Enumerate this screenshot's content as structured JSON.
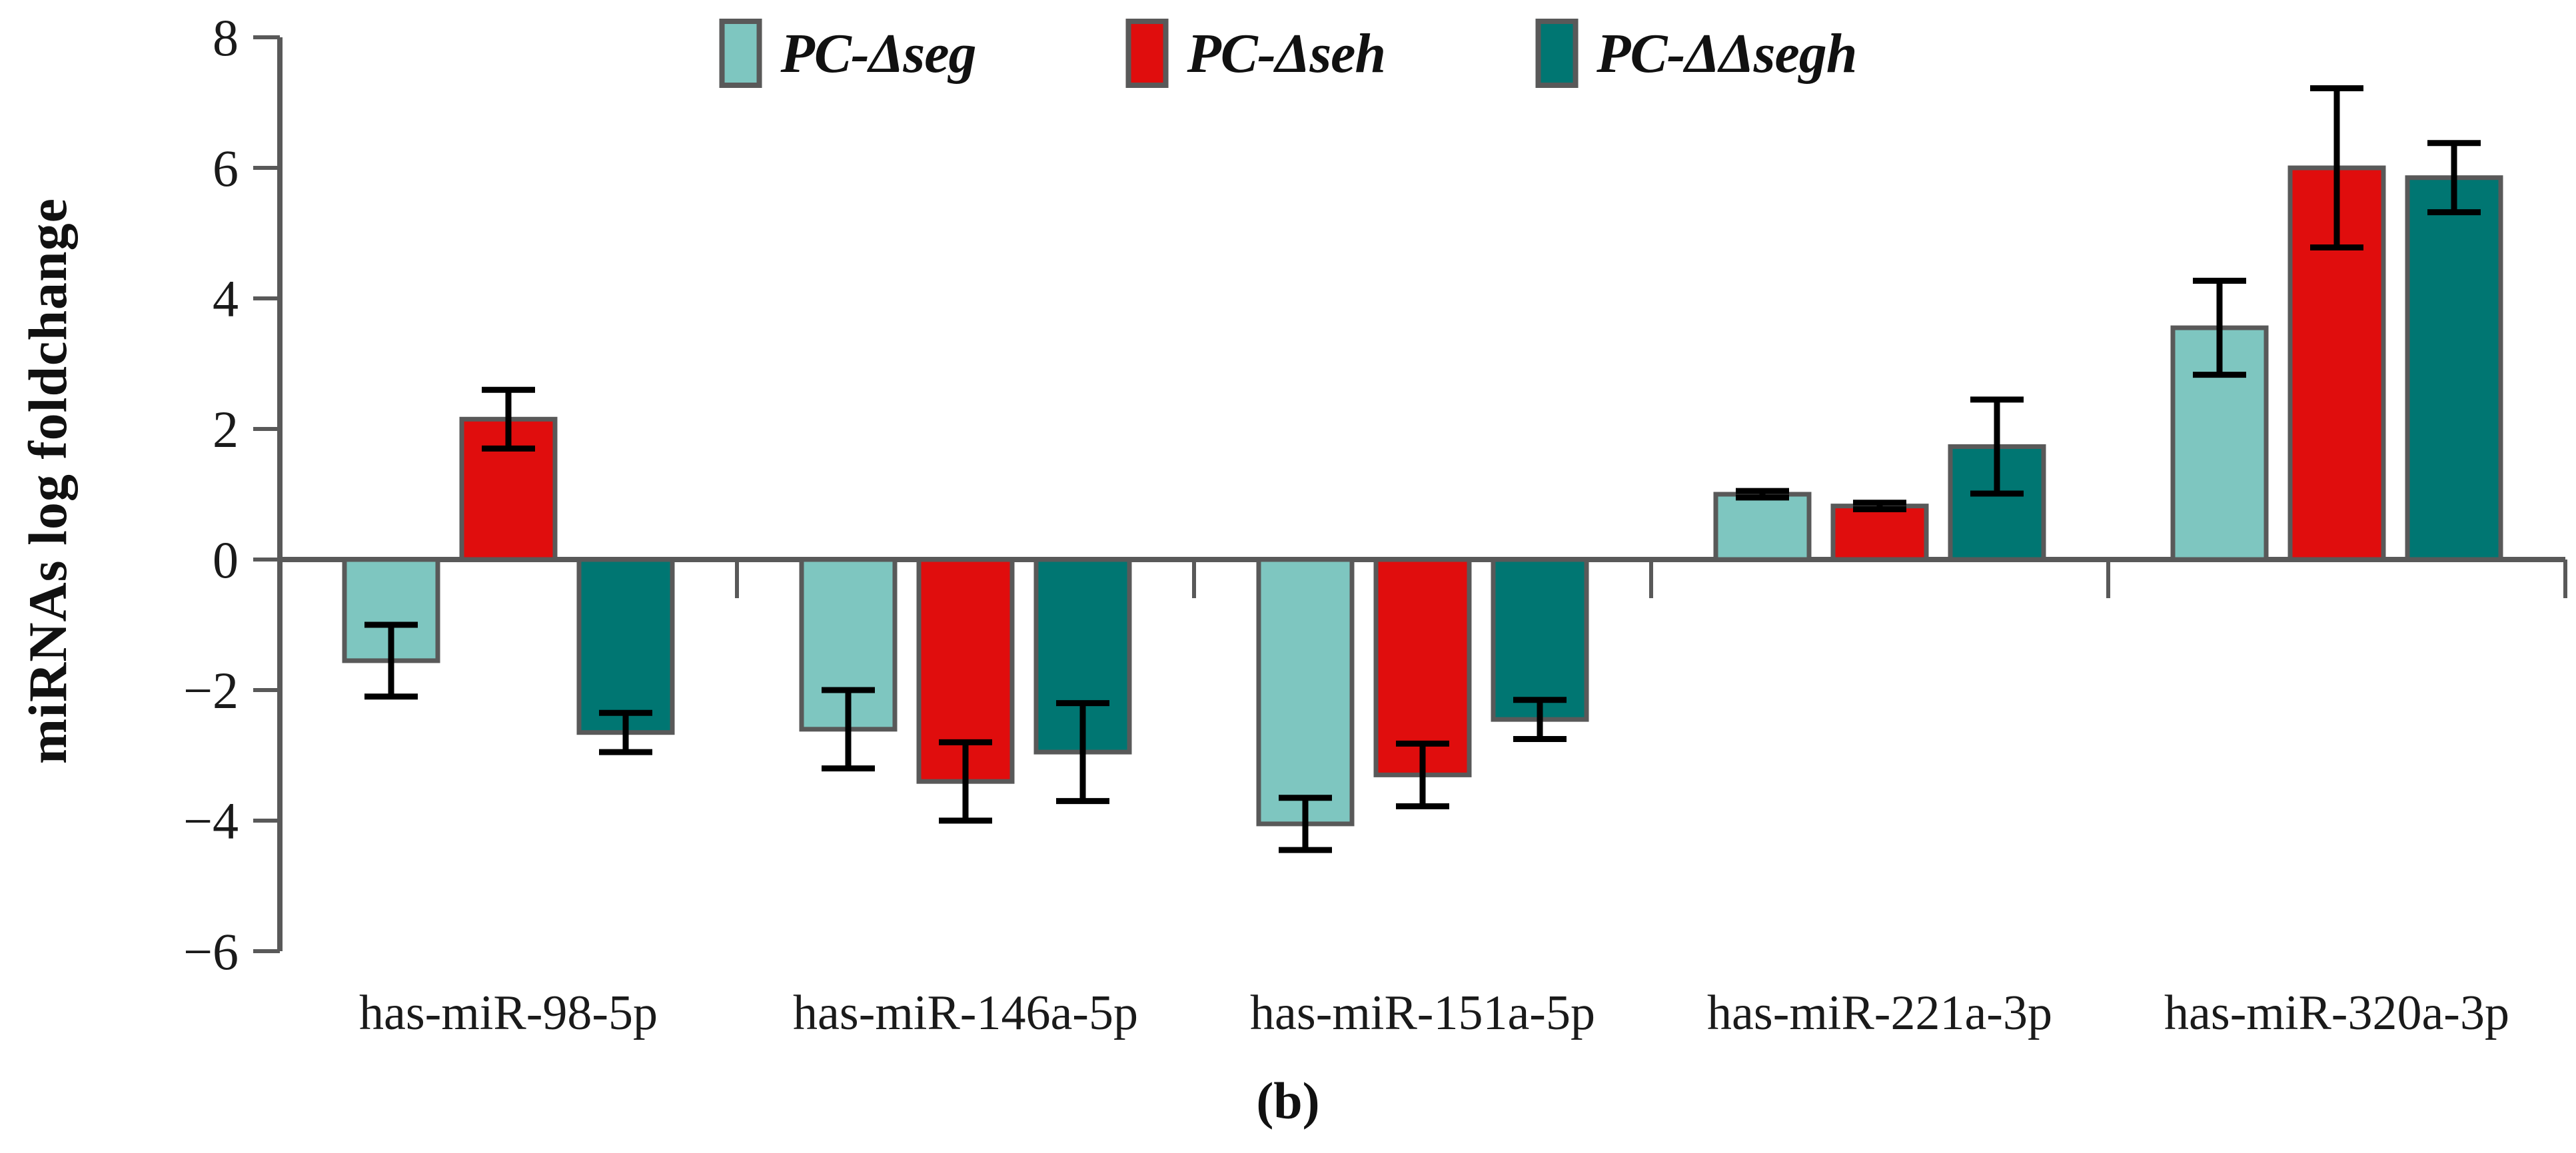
{
  "caption": "(b)",
  "legend": {
    "position": "top",
    "items": [
      {
        "label": "PC-Δseg",
        "color": "#7EC6C0"
      },
      {
        "label": "PC-Δseh",
        "color": "#E00D0D"
      },
      {
        "label": "PC-ΔΔsegh",
        "color": "#007672"
      }
    ]
  },
  "chart_data": {
    "type": "bar",
    "title": "",
    "xlabel": "",
    "ylabel": "miRNAs log foldchange",
    "ylim": [
      -6,
      8
    ],
    "yticks": [
      8,
      6,
      4,
      2,
      0,
      -2,
      -4,
      -6
    ],
    "grid": false,
    "legend_position": "top",
    "categories": [
      "has-miR-98-5p",
      "has-miR-146a-5p",
      "has-miR-151a-5p",
      "has-miR-221a-3p",
      "has-miR-320a-3p"
    ],
    "series": [
      {
        "name": "PC-Δseg",
        "color": "#7EC6C0",
        "values": [
          -1.55,
          -2.6,
          -4.05,
          1.0,
          3.55
        ],
        "errors": [
          0.55,
          0.6,
          0.4,
          0.05,
          0.72
        ]
      },
      {
        "name": "PC-Δseh",
        "color": "#E00D0D",
        "values": [
          2.15,
          -3.4,
          -3.3,
          0.82,
          6.0
        ],
        "errors": [
          0.45,
          0.6,
          0.48,
          0.05,
          1.22
        ]
      },
      {
        "name": "PC-ΔΔsegh",
        "color": "#007672",
        "values": [
          -2.65,
          -2.95,
          -2.45,
          1.73,
          5.85
        ],
        "errors": [
          0.3,
          0.75,
          0.3,
          0.72,
          0.53
        ]
      }
    ],
    "styles": {
      "bar_stroke": "#595959",
      "axis_color": "#595959",
      "error_color": "#000000"
    }
  }
}
